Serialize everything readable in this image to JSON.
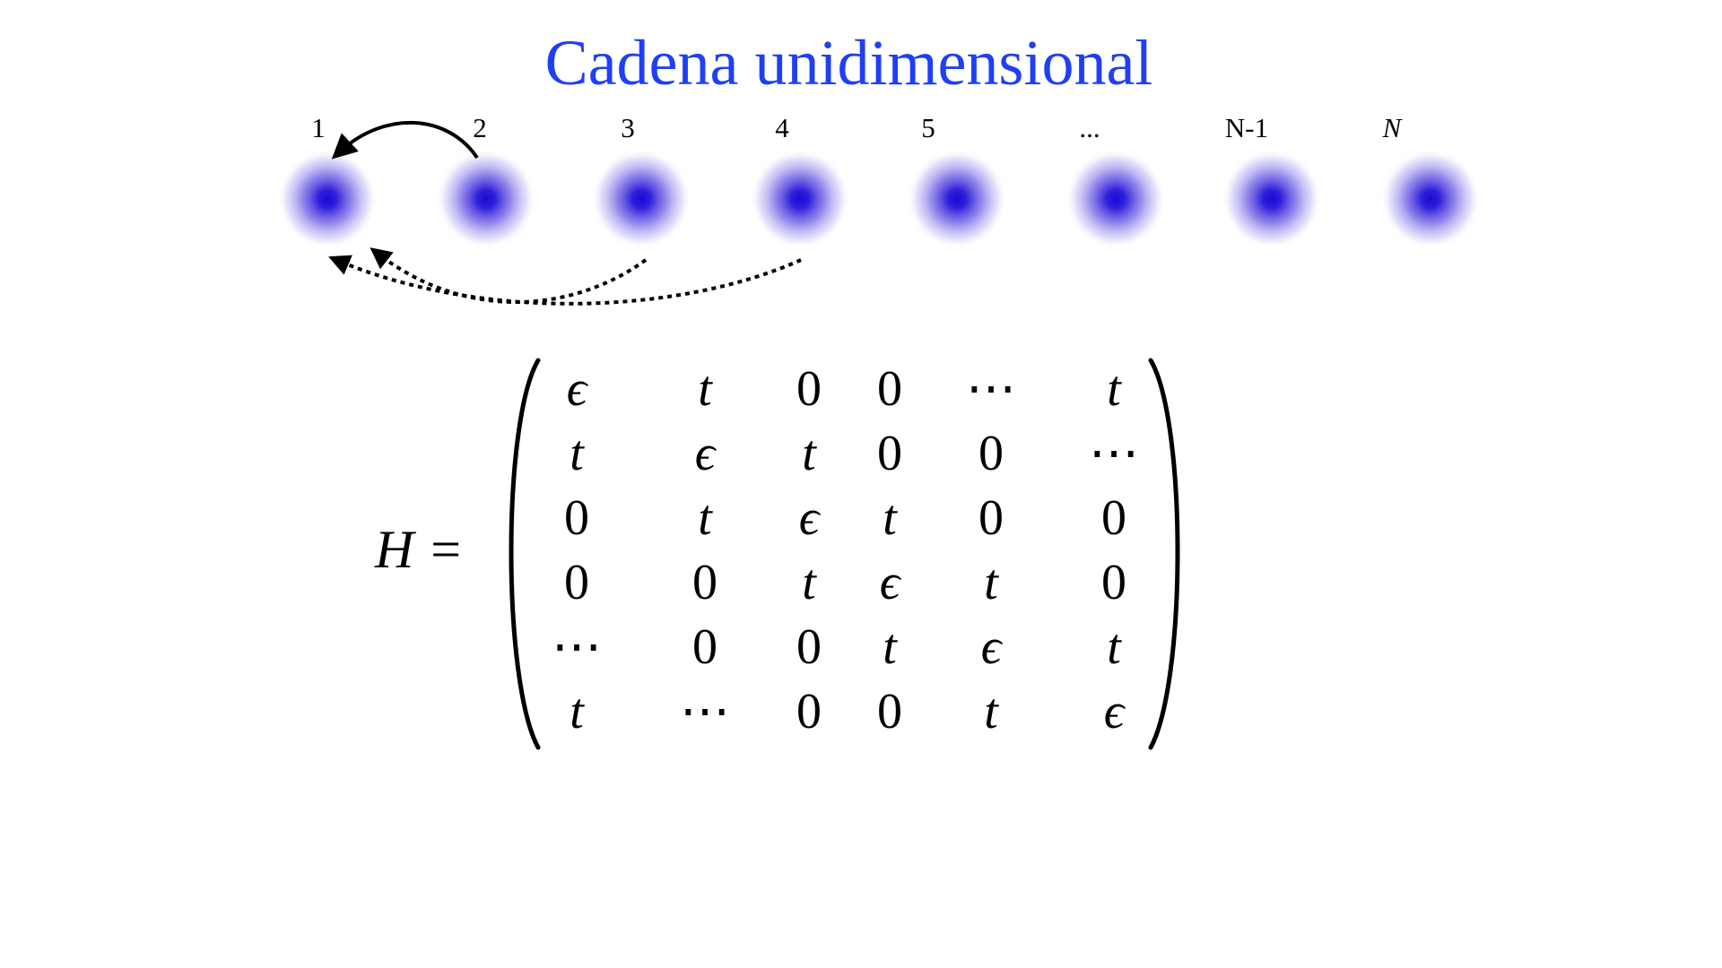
{
  "title": "Cadena unidimensional",
  "sites": {
    "labels": [
      "1",
      "2",
      "3",
      "4",
      "5",
      "...",
      "N-1",
      "N"
    ],
    "color": "#1a0bd6"
  },
  "hoppings": {
    "nearest": {
      "from": "2",
      "to": "1",
      "style": "solid"
    },
    "long_range": [
      {
        "from": "3",
        "to": "1",
        "style": "dotted"
      },
      {
        "from": "4",
        "to": "1",
        "style": "dotted"
      }
    ]
  },
  "hamiltonian": {
    "lhs": "H =",
    "rows": [
      [
        "ϵ",
        "t",
        "0",
        "0",
        "⋯",
        "t"
      ],
      [
        "t",
        "ϵ",
        "t",
        "0",
        "0",
        "⋯"
      ],
      [
        "0",
        "t",
        "ϵ",
        "t",
        "0",
        "0"
      ],
      [
        "0",
        "0",
        "t",
        "ϵ",
        "t",
        "0"
      ],
      [
        "⋯",
        "0",
        "0",
        "t",
        "ϵ",
        "t"
      ],
      [
        "t",
        "⋯",
        "0",
        "0",
        "t",
        "ϵ"
      ]
    ]
  }
}
